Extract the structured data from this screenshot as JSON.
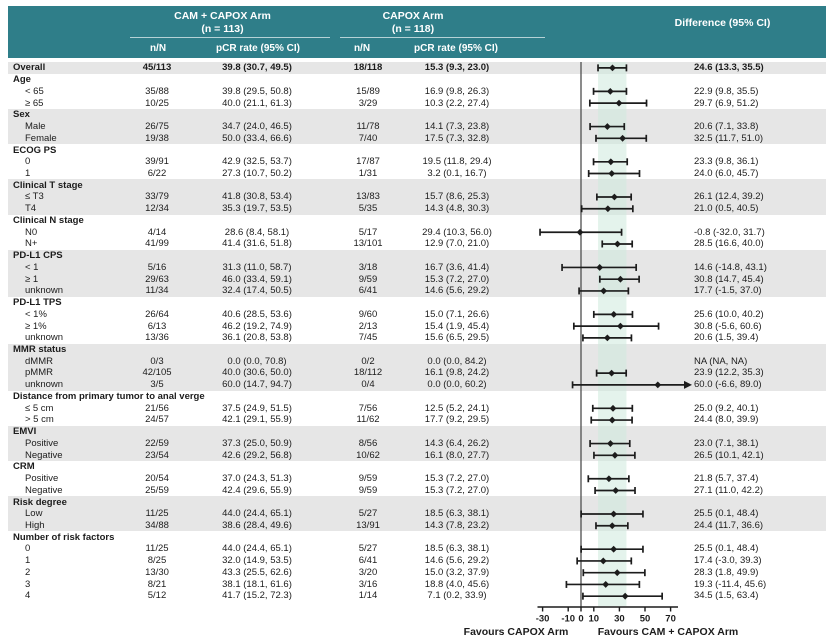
{
  "header": {
    "arm1_title": "CAM + CAPOX Arm",
    "arm1_n": "(n = 113)",
    "arm2_title": "CAPOX Arm",
    "arm2_n": "(n = 118)",
    "col_nN": "n/N",
    "col_pcr": "pCR rate (95% CI)",
    "difference": "Difference (95% CI)"
  },
  "footer": {
    "favours_left": "Favours CAPOX Arm",
    "favours_right": "Favours CAM + CAPOX Arm"
  },
  "colors": {
    "header_bg": "#2f7e89",
    "stripe": "#e6e6e6",
    "band": "#cdeadd",
    "ink": "#1c1c1c",
    "zero_line": "#5a5a5a"
  },
  "chart_data": {
    "type": "forest",
    "axis": {
      "min": -34,
      "max": 75,
      "ticks": [
        -30,
        -10,
        0,
        10,
        30,
        50,
        70
      ]
    },
    "band": {
      "lo": 13.3,
      "hi": 35.5
    },
    "rows": [
      {
        "kind": "overall",
        "shade": true,
        "label": "Overall",
        "nn1": "45/113",
        "pcr1": "39.8 (30.7, 49.5)",
        "nn2": "18/118",
        "pcr2": "15.3 (9.3, 23.0)",
        "diff": "24.6 (13.3, 35.5)",
        "est": 24.6,
        "lo": 13.3,
        "hi": 35.5
      },
      {
        "kind": "group",
        "shade": false,
        "label": "Age",
        "nn1": "",
        "pcr1": "",
        "nn2": "",
        "pcr2": "",
        "diff": "",
        "est": null,
        "lo": null,
        "hi": null
      },
      {
        "kind": "item",
        "shade": false,
        "label": "< 65",
        "nn1": "35/88",
        "pcr1": "39.8 (29.5, 50.8)",
        "nn2": "15/89",
        "pcr2": "16.9 (9.8, 26.3)",
        "diff": "22.9 (9.8, 35.5)",
        "est": 22.9,
        "lo": 9.8,
        "hi": 35.5
      },
      {
        "kind": "item",
        "shade": false,
        "label": "≥ 65",
        "nn1": "10/25",
        "pcr1": "40.0 (21.1, 61.3)",
        "nn2": "3/29",
        "pcr2": "10.3 (2.2, 27.4)",
        "diff": "29.7 (6.9, 51.2)",
        "est": 29.7,
        "lo": 6.9,
        "hi": 51.2
      },
      {
        "kind": "group",
        "shade": true,
        "label": "Sex",
        "nn1": "",
        "pcr1": "",
        "nn2": "",
        "pcr2": "",
        "diff": "",
        "est": null,
        "lo": null,
        "hi": null
      },
      {
        "kind": "item",
        "shade": true,
        "label": "Male",
        "nn1": "26/75",
        "pcr1": "34.7 (24.0, 46.5)",
        "nn2": "11/78",
        "pcr2": "14.1 (7.3, 23.8)",
        "diff": "20.6 (7.1, 33.8)",
        "est": 20.6,
        "lo": 7.1,
        "hi": 33.8
      },
      {
        "kind": "item",
        "shade": true,
        "label": "Female",
        "nn1": "19/38",
        "pcr1": "50.0 (33.4, 66.6)",
        "nn2": "7/40",
        "pcr2": "17.5 (7.3, 32.8)",
        "diff": "32.5 (11.7, 51.0)",
        "est": 32.5,
        "lo": 11.7,
        "hi": 51.0
      },
      {
        "kind": "group",
        "shade": false,
        "label": "ECOG PS",
        "nn1": "",
        "pcr1": "",
        "nn2": "",
        "pcr2": "",
        "diff": "",
        "est": null,
        "lo": null,
        "hi": null
      },
      {
        "kind": "item",
        "shade": false,
        "label": "0",
        "nn1": "39/91",
        "pcr1": "42.9 (32.5, 53.7)",
        "nn2": "17/87",
        "pcr2": "19.5 (11.8, 29.4)",
        "diff": "23.3 (9.8, 36.1)",
        "est": 23.3,
        "lo": 9.8,
        "hi": 36.1
      },
      {
        "kind": "item",
        "shade": false,
        "label": "1",
        "nn1": "6/22",
        "pcr1": "27.3 (10.7, 50.2)",
        "nn2": "1/31",
        "pcr2": "3.2 (0.1, 16.7)",
        "diff": "24.0 (6.0, 45.7)",
        "est": 24.0,
        "lo": 6.0,
        "hi": 45.7
      },
      {
        "kind": "group",
        "shade": true,
        "label": "Clinical T stage",
        "nn1": "",
        "pcr1": "",
        "nn2": "",
        "pcr2": "",
        "diff": "",
        "est": null,
        "lo": null,
        "hi": null
      },
      {
        "kind": "item",
        "shade": true,
        "label": "≤ T3",
        "nn1": "33/79",
        "pcr1": "41.8 (30.8, 53.4)",
        "nn2": "13/83",
        "pcr2": "15.7 (8.6, 25.3)",
        "diff": "26.1 (12.4, 39.2)",
        "est": 26.1,
        "lo": 12.4,
        "hi": 39.2
      },
      {
        "kind": "item",
        "shade": true,
        "label": "T4",
        "nn1": "12/34",
        "pcr1": "35.3 (19.7, 53.5)",
        "nn2": "5/35",
        "pcr2": "14.3 (4.8, 30.3)",
        "diff": "21.0 (0.5, 40.5)",
        "est": 21.0,
        "lo": 0.5,
        "hi": 40.5
      },
      {
        "kind": "group",
        "shade": false,
        "label": "Clinical N stage",
        "nn1": "",
        "pcr1": "",
        "nn2": "",
        "pcr2": "",
        "diff": "",
        "est": null,
        "lo": null,
        "hi": null
      },
      {
        "kind": "item",
        "shade": false,
        "label": "N0",
        "nn1": "4/14",
        "pcr1": "28.6 (8.4, 58.1)",
        "nn2": "5/17",
        "pcr2": "29.4 (10.3, 56.0)",
        "diff": "-0.8 (-32.0, 31.7)",
        "est": -0.8,
        "lo": -32.0,
        "hi": 31.7
      },
      {
        "kind": "item",
        "shade": false,
        "label": "N+",
        "nn1": "41/99",
        "pcr1": "41.4 (31.6, 51.8)",
        "nn2": "13/101",
        "pcr2": "12.9 (7.0, 21.0)",
        "diff": "28.5 (16.6, 40.0)",
        "est": 28.5,
        "lo": 16.6,
        "hi": 40.0
      },
      {
        "kind": "group",
        "shade": true,
        "label": "PD-L1 CPS",
        "nn1": "",
        "pcr1": "",
        "nn2": "",
        "pcr2": "",
        "diff": "",
        "est": null,
        "lo": null,
        "hi": null
      },
      {
        "kind": "item",
        "shade": true,
        "label": "< 1",
        "nn1": "5/16",
        "pcr1": "31.3 (11.0, 58.7)",
        "nn2": "3/18",
        "pcr2": "16.7 (3.6, 41.4)",
        "diff": "14.6 (-14.8, 43.1)",
        "est": 14.6,
        "lo": -14.8,
        "hi": 43.1
      },
      {
        "kind": "item",
        "shade": true,
        "label": "≥ 1",
        "nn1": "29/63",
        "pcr1": "46.0 (33.4, 59.1)",
        "nn2": "9/59",
        "pcr2": "15.3 (7.2, 27.0)",
        "diff": "30.8 (14.7, 45.4)",
        "est": 30.8,
        "lo": 14.7,
        "hi": 45.4
      },
      {
        "kind": "item",
        "shade": true,
        "label": "unknown",
        "nn1": "11/34",
        "pcr1": "32.4 (17.4, 50.5)",
        "nn2": "6/41",
        "pcr2": "14.6 (5.6, 29.2)",
        "diff": "17.7 (-1.5, 37.0)",
        "est": 17.7,
        "lo": -1.5,
        "hi": 37.0
      },
      {
        "kind": "group",
        "shade": false,
        "label": "PD-L1 TPS",
        "nn1": "",
        "pcr1": "",
        "nn2": "",
        "pcr2": "",
        "diff": "",
        "est": null,
        "lo": null,
        "hi": null
      },
      {
        "kind": "item",
        "shade": false,
        "label": "< 1%",
        "nn1": "26/64",
        "pcr1": "40.6 (28.5, 53.6)",
        "nn2": "9/60",
        "pcr2": "15.0 (7.1, 26.6)",
        "diff": "25.6 (10.0, 40.2)",
        "est": 25.6,
        "lo": 10.0,
        "hi": 40.2
      },
      {
        "kind": "item",
        "shade": false,
        "label": "≥ 1%",
        "nn1": "6/13",
        "pcr1": "46.2 (19.2, 74.9)",
        "nn2": "2/13",
        "pcr2": "15.4 (1.9, 45.4)",
        "diff": "30.8 (-5.6, 60.6)",
        "est": 30.8,
        "lo": -5.6,
        "hi": 60.6
      },
      {
        "kind": "item",
        "shade": false,
        "label": "unknown",
        "nn1": "13/36",
        "pcr1": "36.1 (20.8, 53.8)",
        "nn2": "7/45",
        "pcr2": "15.6 (6.5, 29.5)",
        "diff": "20.6 (1.5, 39.4)",
        "est": 20.6,
        "lo": 1.5,
        "hi": 39.4
      },
      {
        "kind": "group",
        "shade": true,
        "label": "MMR status",
        "nn1": "",
        "pcr1": "",
        "nn2": "",
        "pcr2": "",
        "diff": "",
        "est": null,
        "lo": null,
        "hi": null
      },
      {
        "kind": "item",
        "shade": true,
        "label": "dMMR",
        "nn1": "0/3",
        "pcr1": "0.0 (0.0, 70.8)",
        "nn2": "0/2",
        "pcr2": "0.0 (0.0, 84.2)",
        "diff": "NA (NA, NA)",
        "est": null,
        "lo": null,
        "hi": null
      },
      {
        "kind": "item",
        "shade": true,
        "label": "pMMR",
        "nn1": "42/105",
        "pcr1": "40.0 (30.6, 50.0)",
        "nn2": "18/112",
        "pcr2": "16.1 (9.8, 24.2)",
        "diff": "23.9 (12.2, 35.3)",
        "est": 23.9,
        "lo": 12.2,
        "hi": 35.3
      },
      {
        "kind": "item",
        "shade": true,
        "label": "unknown",
        "nn1": "3/5",
        "pcr1": "60.0 (14.7, 94.7)",
        "nn2": "0/4",
        "pcr2": "0.0 (0.0, 60.2)",
        "diff": "60.0 (-6.6, 89.0)",
        "est": 60.0,
        "lo": -6.6,
        "hi": 89.0
      },
      {
        "kind": "group",
        "shade": false,
        "label": "Distance from primary tumor to anal verge",
        "nn1": "",
        "pcr1": "",
        "nn2": "",
        "pcr2": "",
        "diff": "",
        "est": null,
        "lo": null,
        "hi": null
      },
      {
        "kind": "item",
        "shade": false,
        "label": "≤ 5 cm",
        "nn1": "21/56",
        "pcr1": "37.5 (24.9, 51.5)",
        "nn2": "7/56",
        "pcr2": "12.5 (5.2, 24.1)",
        "diff": "25.0 (9.2, 40.1)",
        "est": 25.0,
        "lo": 9.2,
        "hi": 40.1
      },
      {
        "kind": "item",
        "shade": false,
        "label": "> 5 cm",
        "nn1": "24/57",
        "pcr1": "42.1 (29.1, 55.9)",
        "nn2": "11/62",
        "pcr2": "17.7 (9.2, 29.5)",
        "diff": "24.4 (8.0, 39.9)",
        "est": 24.4,
        "lo": 8.0,
        "hi": 39.9
      },
      {
        "kind": "group",
        "shade": true,
        "label": "EMVI",
        "nn1": "",
        "pcr1": "",
        "nn2": "",
        "pcr2": "",
        "diff": "",
        "est": null,
        "lo": null,
        "hi": null
      },
      {
        "kind": "item",
        "shade": true,
        "label": "Positive",
        "nn1": "22/59",
        "pcr1": "37.3 (25.0, 50.9)",
        "nn2": "8/56",
        "pcr2": "14.3 (6.4, 26.2)",
        "diff": "23.0 (7.1, 38.1)",
        "est": 23.0,
        "lo": 7.1,
        "hi": 38.1
      },
      {
        "kind": "item",
        "shade": true,
        "label": "Negative",
        "nn1": "23/54",
        "pcr1": "42.6 (29.2, 56.8)",
        "nn2": "10/62",
        "pcr2": "16.1 (8.0, 27.7)",
        "diff": "26.5 (10.1, 42.1)",
        "est": 26.5,
        "lo": 10.1,
        "hi": 42.1
      },
      {
        "kind": "group",
        "shade": false,
        "label": "CRM",
        "nn1": "",
        "pcr1": "",
        "nn2": "",
        "pcr2": "",
        "diff": "",
        "est": null,
        "lo": null,
        "hi": null
      },
      {
        "kind": "item",
        "shade": false,
        "label": "Positive",
        "nn1": "20/54",
        "pcr1": "37.0 (24.3, 51.3)",
        "nn2": "9/59",
        "pcr2": "15.3 (7.2, 27.0)",
        "diff": "21.8 (5.7, 37.4)",
        "est": 21.8,
        "lo": 5.7,
        "hi": 37.4
      },
      {
        "kind": "item",
        "shade": false,
        "label": "Negative",
        "nn1": "25/59",
        "pcr1": "42.4 (29.6, 55.9)",
        "nn2": "9/59",
        "pcr2": "15.3 (7.2, 27.0)",
        "diff": "27.1 (11.0, 42.2)",
        "est": 27.1,
        "lo": 11.0,
        "hi": 42.2
      },
      {
        "kind": "group",
        "shade": true,
        "label": "Risk degree",
        "nn1": "",
        "pcr1": "",
        "nn2": "",
        "pcr2": "",
        "diff": "",
        "est": null,
        "lo": null,
        "hi": null
      },
      {
        "kind": "item",
        "shade": true,
        "label": "Low",
        "nn1": "11/25",
        "pcr1": "44.0 (24.4, 65.1)",
        "nn2": "5/27",
        "pcr2": "18.5 (6.3, 38.1)",
        "diff": "25.5 (0.1, 48.4)",
        "est": 25.5,
        "lo": 0.1,
        "hi": 48.4
      },
      {
        "kind": "item",
        "shade": true,
        "label": "High",
        "nn1": "34/88",
        "pcr1": "38.6 (28.4, 49.6)",
        "nn2": "13/91",
        "pcr2": "14.3 (7.8, 23.2)",
        "diff": "24.4 (11.7, 36.6)",
        "est": 24.4,
        "lo": 11.7,
        "hi": 36.6
      },
      {
        "kind": "group",
        "shade": false,
        "label": "Number of risk factors",
        "nn1": "",
        "pcr1": "",
        "nn2": "",
        "pcr2": "",
        "diff": "",
        "est": null,
        "lo": null,
        "hi": null
      },
      {
        "kind": "item",
        "shade": false,
        "label": "0",
        "nn1": "11/25",
        "pcr1": "44.0 (24.4, 65.1)",
        "nn2": "5/27",
        "pcr2": "18.5 (6.3, 38.1)",
        "diff": "25.5 (0.1, 48.4)",
        "est": 25.5,
        "lo": 0.1,
        "hi": 48.4
      },
      {
        "kind": "item",
        "shade": false,
        "label": "1",
        "nn1": "8/25",
        "pcr1": "32.0 (14.9, 53.5)",
        "nn2": "6/41",
        "pcr2": "14.6 (5.6, 29.2)",
        "diff": "17.4 (-3.0, 39.3)",
        "est": 17.4,
        "lo": -3.0,
        "hi": 39.3
      },
      {
        "kind": "item",
        "shade": false,
        "label": "2",
        "nn1": "13/30",
        "pcr1": "43.3 (25.5, 62.6)",
        "nn2": "3/20",
        "pcr2": "15.0 (3.2, 37.9)",
        "diff": "28.3 (1.8, 49.9)",
        "est": 28.3,
        "lo": 1.8,
        "hi": 49.9
      },
      {
        "kind": "item",
        "shade": false,
        "label": "3",
        "nn1": "8/21",
        "pcr1": "38.1 (18.1, 61.6)",
        "nn2": "3/16",
        "pcr2": "18.8 (4.0, 45.6)",
        "diff": "19.3 (-11.4, 45.6)",
        "est": 19.3,
        "lo": -11.4,
        "hi": 45.6
      },
      {
        "kind": "item",
        "shade": false,
        "label": "4",
        "nn1": "5/12",
        "pcr1": "41.7 (15.2, 72.3)",
        "nn2": "1/14",
        "pcr2": "7.1 (0.2, 33.9)",
        "diff": "34.5 (1.5, 63.4)",
        "est": 34.5,
        "lo": 1.5,
        "hi": 63.4
      }
    ]
  }
}
